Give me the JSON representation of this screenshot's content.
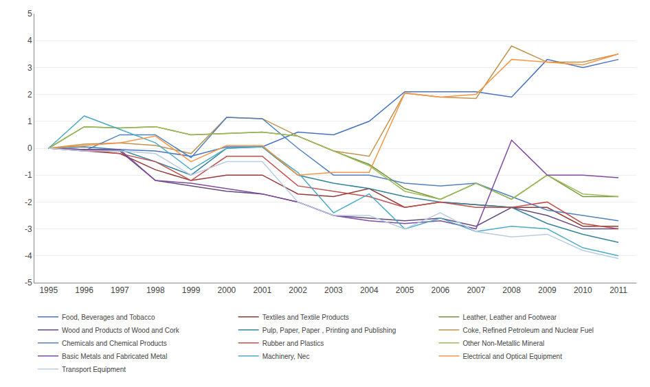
{
  "chart_data": {
    "type": "line",
    "x": [
      1995,
      1996,
      1997,
      1998,
      1999,
      2000,
      2001,
      2002,
      2003,
      2004,
      2005,
      2006,
      2007,
      2008,
      2009,
      2010,
      2011
    ],
    "series": [
      {
        "name": "Food, Beverages and Tobacco",
        "color": "#4472C4",
        "values": [
          0.0,
          -0.05,
          -0.05,
          -0.1,
          -0.3,
          0.05,
          0.05,
          0.6,
          0.5,
          1.0,
          2.1,
          2.1,
          2.1,
          1.9,
          3.3,
          3.0,
          3.3
        ]
      },
      {
        "name": "Textiles and Textile Products",
        "color": "#953735",
        "values": [
          0.0,
          -0.1,
          -0.2,
          -0.8,
          -1.2,
          -1.0,
          -1.0,
          -1.7,
          -1.8,
          -1.5,
          -2.2,
          -2.0,
          -2.1,
          -2.2,
          -2.2,
          -2.9,
          -2.9
        ]
      },
      {
        "name": "Leather, Leather and Footwear",
        "color": "#76933C",
        "values": [
          0.0,
          0.8,
          0.75,
          0.8,
          0.5,
          0.55,
          0.6,
          0.45,
          -0.1,
          -0.6,
          -1.5,
          -1.9,
          -1.3,
          -1.9,
          -1.0,
          -1.8,
          -1.8
        ]
      },
      {
        "name": "Wood and Products of Wood and Cork",
        "color": "#604A7B",
        "values": [
          0.0,
          -0.05,
          -0.1,
          -1.2,
          -1.4,
          -1.6,
          -1.7,
          -2.0,
          -2.5,
          -2.6,
          -2.7,
          -2.6,
          -2.9,
          -2.2,
          -2.5,
          -3.0,
          -3.0
        ]
      },
      {
        "name": "Pulp, Paper, Paper , Printing and Publishing",
        "color": "#31849B",
        "values": [
          0.0,
          0.05,
          -0.05,
          -0.5,
          -1.0,
          0.0,
          0.05,
          -1.0,
          -1.3,
          -1.5,
          -1.8,
          -2.0,
          -2.1,
          -2.2,
          -2.8,
          -3.2,
          -3.5
        ]
      },
      {
        "name": "Coke, Refined Petroleum and Nuclear Fuel",
        "color": "#C0924C",
        "values": [
          0.0,
          0.15,
          0.2,
          0.1,
          -0.2,
          1.15,
          1.1,
          0.45,
          -0.1,
          -0.3,
          2.05,
          1.9,
          1.85,
          3.8,
          3.2,
          3.2,
          3.5
        ]
      },
      {
        "name": "Chemicals and Chemical Products",
        "color": "#4F81BD",
        "values": [
          0.0,
          -0.1,
          0.5,
          0.5,
          -0.35,
          1.15,
          1.1,
          0.0,
          -1.0,
          -1.0,
          -1.3,
          -1.4,
          -1.3,
          -1.8,
          -2.3,
          -2.5,
          -2.7
        ]
      },
      {
        "name": "Rubber and Plastics",
        "color": "#C0504D",
        "values": [
          0.0,
          -0.05,
          -0.2,
          -0.5,
          -1.2,
          -0.3,
          -0.3,
          -1.4,
          -1.6,
          -1.8,
          -2.2,
          -2.0,
          -2.2,
          -2.2,
          -2.0,
          -2.8,
          -3.0
        ]
      },
      {
        "name": "Other Non-Metallic Mineral",
        "color": "#9BBB59",
        "values": [
          0.0,
          0.8,
          0.75,
          0.8,
          0.5,
          0.55,
          0.6,
          0.45,
          -0.1,
          -0.65,
          -1.6,
          -1.9,
          -1.3,
          -1.9,
          -1.0,
          -1.7,
          -1.8
        ]
      },
      {
        "name": "Basic Metals and Fabricated Metal",
        "color": "#7F49A0",
        "values": [
          0.0,
          -0.05,
          -0.05,
          -1.2,
          -1.3,
          -1.5,
          -1.7,
          -2.0,
          -2.5,
          -2.7,
          -2.8,
          -2.7,
          -3.0,
          0.3,
          -1.0,
          -1.0,
          -1.1
        ]
      },
      {
        "name": "Machinery, Nec",
        "color": "#4BACC6",
        "values": [
          0.0,
          1.2,
          0.7,
          0.2,
          -0.8,
          0.0,
          0.05,
          -0.9,
          -2.4,
          -1.7,
          -3.0,
          -2.6,
          -3.1,
          -2.9,
          -3.0,
          -3.7,
          -4.0
        ]
      },
      {
        "name": "Electrical and Optical Equipment",
        "color": "#F79646",
        "values": [
          0.0,
          0.1,
          0.2,
          0.45,
          -0.5,
          0.1,
          0.1,
          -1.0,
          -0.9,
          -0.9,
          2.05,
          1.9,
          2.0,
          3.3,
          3.2,
          3.1,
          3.5
        ]
      },
      {
        "name": "Transport Equipment",
        "color": "#B8CCE4",
        "values": [
          0.0,
          -0.1,
          -0.1,
          -0.2,
          -1.0,
          -0.5,
          -0.5,
          -2.0,
          -2.5,
          -2.5,
          -3.0,
          -2.4,
          -3.1,
          -3.3,
          -3.2,
          -3.8,
          -4.1
        ]
      }
    ],
    "xlim": [
      1994.6,
      2011.5
    ],
    "xticks": [
      1995,
      1996,
      1997,
      1998,
      1999,
      2000,
      2001,
      2002,
      2003,
      2004,
      2005,
      2006,
      2007,
      2008,
      2009,
      2010,
      2011
    ],
    "ylim": [
      -5,
      5
    ],
    "yticks": [
      -5,
      -4,
      -3,
      -2,
      -1,
      0,
      1,
      2,
      3,
      4,
      5
    ],
    "grid": "y",
    "legend": "bottom"
  }
}
